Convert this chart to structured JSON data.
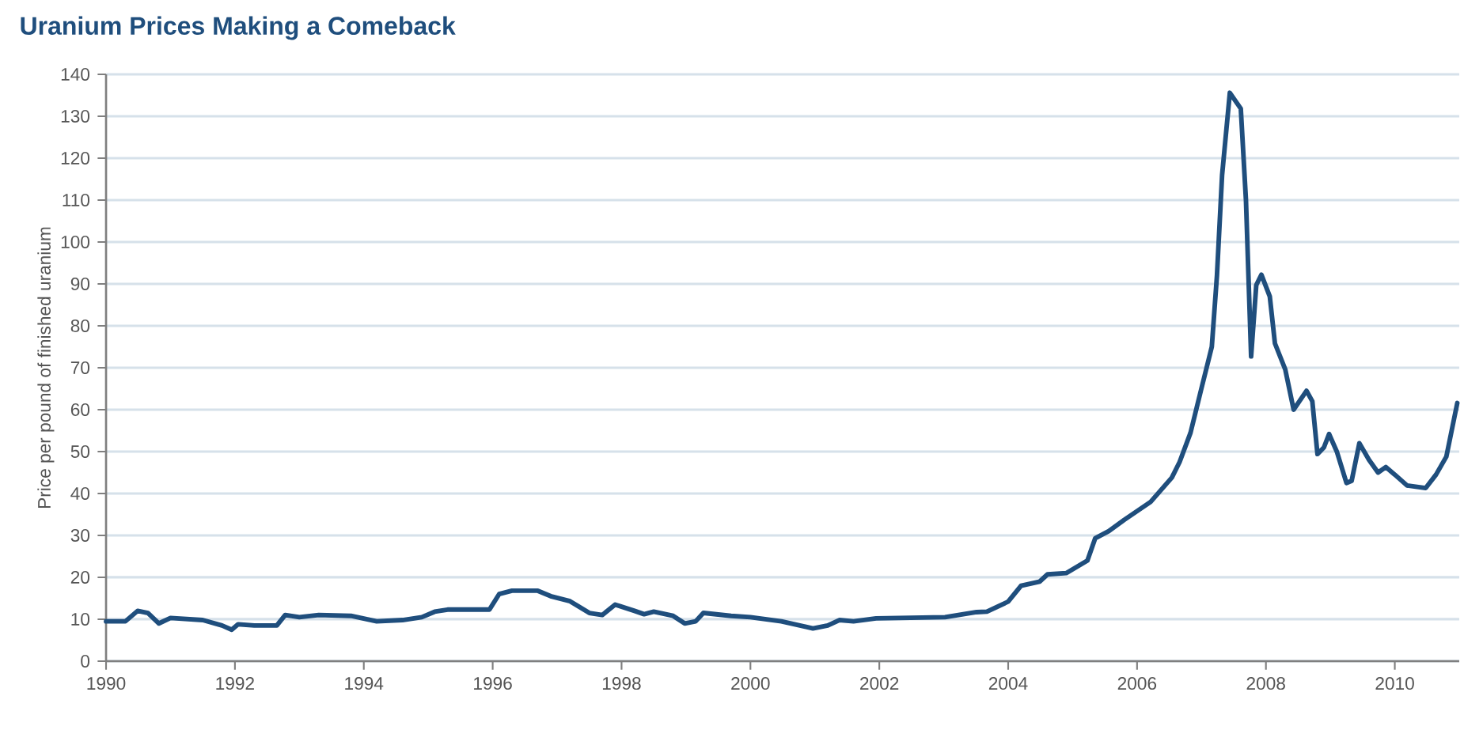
{
  "chart_data": {
    "type": "line",
    "title": "Uranium Prices Making a Comeback",
    "ylabel": "Price per pound of finished uranium",
    "x": [
      1990.0,
      1990.3,
      1990.49,
      1990.65,
      1990.82,
      1991.0,
      1991.5,
      1991.8,
      1991.95,
      1992.05,
      1992.3,
      1992.65,
      1992.78,
      1993.0,
      1993.3,
      1993.8,
      1994.2,
      1994.6,
      1994.9,
      1995.1,
      1995.3,
      1995.8,
      1995.95,
      1996.1,
      1996.3,
      1996.7,
      1996.9,
      1997.2,
      1997.5,
      1997.7,
      1997.9,
      1998.2,
      1998.35,
      1998.5,
      1998.8,
      1998.98,
      1999.15,
      1999.27,
      1999.7,
      2000.0,
      2000.48,
      2000.97,
      2001.2,
      2001.38,
      2001.6,
      2001.95,
      2003.02,
      2003.51,
      2003.67,
      2004.0,
      2004.2,
      2004.49,
      2004.61,
      2004.9,
      2005.23,
      2005.35,
      2005.56,
      2005.8,
      2006.21,
      2006.54,
      2006.66,
      2006.83,
      2006.99,
      2007.16,
      2007.24,
      2007.32,
      2007.44,
      2007.61,
      2007.69,
      2007.77,
      2007.85,
      2007.93,
      2008.06,
      2008.14,
      2008.3,
      2008.43,
      2008.63,
      2008.72,
      2008.8,
      2008.9,
      2008.98,
      2009.1,
      2009.25,
      2009.33,
      2009.45,
      2009.6,
      2009.74,
      2009.86,
      2010.0,
      2010.19,
      2010.48,
      2010.64,
      2010.8,
      2010.97
    ],
    "series": [
      {
        "color": "#1f4e7d",
        "values": [
          9.5,
          9.5,
          12,
          11.5,
          9,
          10.3,
          9.8,
          8.5,
          7.5,
          8.8,
          8.5,
          8.5,
          11,
          10.5,
          11,
          10.8,
          9.5,
          9.8,
          10.5,
          11.8,
          12.3,
          12.3,
          12.3,
          16,
          16.8,
          16.8,
          15.5,
          14.3,
          11.5,
          11,
          13.5,
          12,
          11.2,
          11.8,
          10.8,
          9,
          9.5,
          11.5,
          10.8,
          10.5,
          9.5,
          7.8,
          8.5,
          9.8,
          9.5,
          10.2,
          10.5,
          11.7,
          11.8,
          14.2,
          18,
          19,
          20.7,
          21,
          24,
          29.3,
          31,
          33.7,
          38,
          43.8,
          47.5,
          54.5,
          64.5,
          75,
          92,
          116,
          135.6,
          131.8,
          110,
          72.7,
          89.7,
          92.2,
          87,
          75.8,
          69.6,
          60,
          64.5,
          62,
          49.4,
          51,
          54.2,
          50,
          42.5,
          43,
          52,
          48,
          45,
          46.3,
          44.5,
          41.9,
          41.3,
          44.5,
          48.8,
          61.6
        ]
      }
    ],
    "xlim": [
      1990,
      2011
    ],
    "xticks": [
      1990,
      1992,
      1994,
      1996,
      1998,
      2000,
      2002,
      2004,
      2006,
      2008,
      2010
    ],
    "ylim": [
      0,
      140
    ],
    "yticks": [
      0,
      10,
      20,
      30,
      40,
      50,
      60,
      70,
      80,
      90,
      100,
      110,
      120,
      130,
      140
    ],
    "grid": "y",
    "line_style": "solid"
  }
}
